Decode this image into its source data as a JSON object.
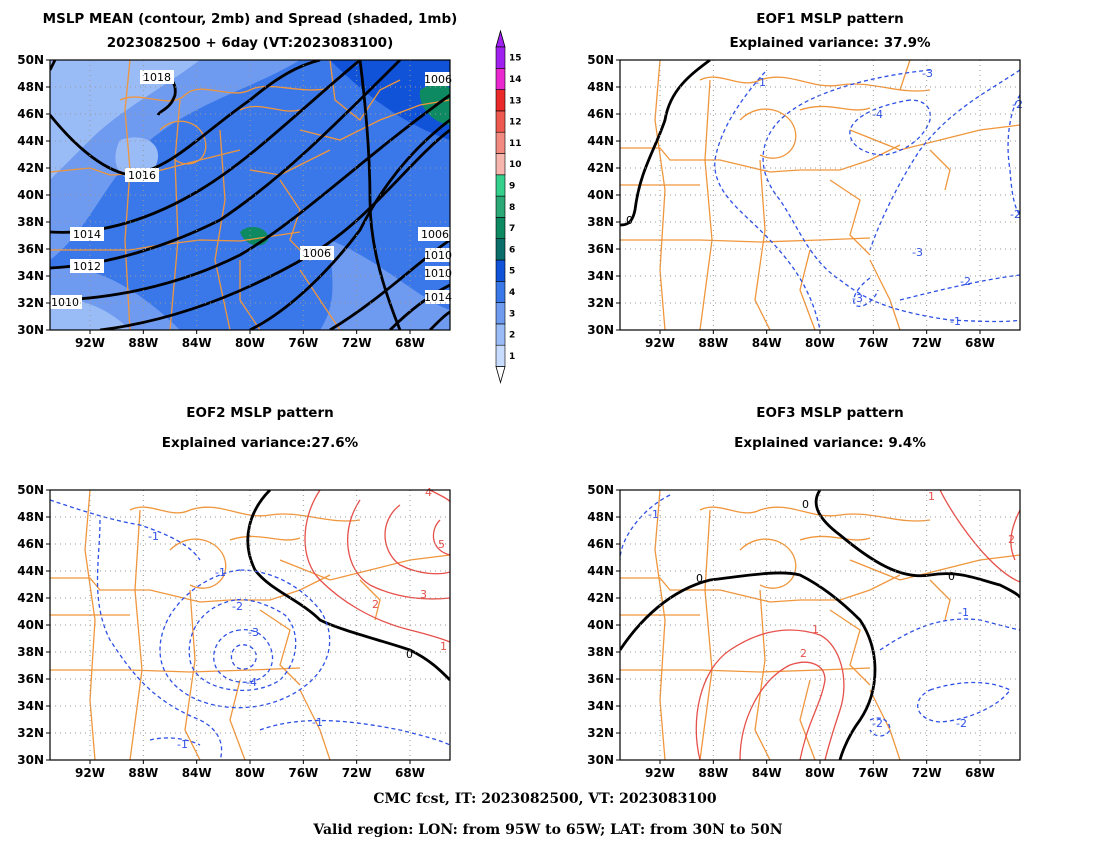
{
  "panels": [
    {
      "id": "mean",
      "title": [
        "MSLP MEAN (contour, 2mb) and Spread (shaded, 1mb)",
        "2023082500 + 6day (VT:2023083100)"
      ],
      "contour_labels": [
        "1018",
        "1016",
        "1014",
        "1012",
        "1010",
        "1006",
        "1006",
        "1006",
        "1010",
        "1010",
        "1014"
      ]
    },
    {
      "id": "eof1",
      "title": [
        "EOF1 MSLP pattern",
        "Explained variance: 37.9%"
      ],
      "contour_labels": [
        "0",
        "-1",
        "-2",
        "-3",
        "-4",
        "-3",
        "-3",
        "-2",
        "-1",
        "-2"
      ]
    },
    {
      "id": "eof2",
      "title": [
        "EOF2 MSLP pattern",
        "Explained variance:27.6%"
      ],
      "contour_labels": [
        "-1",
        "-1",
        "-2",
        "-3",
        "-4",
        "-1",
        "-1",
        "0",
        "1",
        "2",
        "3",
        "4",
        "5"
      ]
    },
    {
      "id": "eof3",
      "title": [
        "EOF3 MSLP pattern",
        "Explained variance: 9.4%"
      ],
      "contour_labels": [
        "0",
        "0",
        "0",
        "-1",
        "-1",
        "-2",
        "-2",
        "1",
        "2",
        "1",
        "2"
      ]
    }
  ],
  "axes": {
    "lat_labels": [
      "50N",
      "48N",
      "46N",
      "44N",
      "42N",
      "40N",
      "38N",
      "36N",
      "34N",
      "32N",
      "30N"
    ],
    "lon_labels": [
      "92W",
      "88W",
      "84W",
      "80W",
      "76W",
      "72W",
      "68W"
    ]
  },
  "colorbar": {
    "labels": [
      "1",
      "2",
      "3",
      "4",
      "5",
      "6",
      "7",
      "8",
      "9",
      "10",
      "11",
      "12",
      "13",
      "14",
      "15"
    ],
    "colors": [
      "#c8dcff",
      "#9abcf6",
      "#6e9af0",
      "#3a78ea",
      "#1052d8",
      "#0a6e6a",
      "#0e8a62",
      "#2aa876",
      "#34d08c",
      "#f6b6ae",
      "#f28a80",
      "#ee5a50",
      "#ea2a28",
      "#ea28d0",
      "#a020f0"
    ]
  },
  "footer": {
    "line1": "CMC fcst, IT: 2023082500, VT: 2023083100",
    "line2": "Valid region: LON: from 95W to 65W; LAT: from 30N to 50N"
  },
  "colors": {
    "map_lines": "#f0963c",
    "negative": "#2d50e6",
    "positive": "#e6504a",
    "zero": "#000000"
  }
}
